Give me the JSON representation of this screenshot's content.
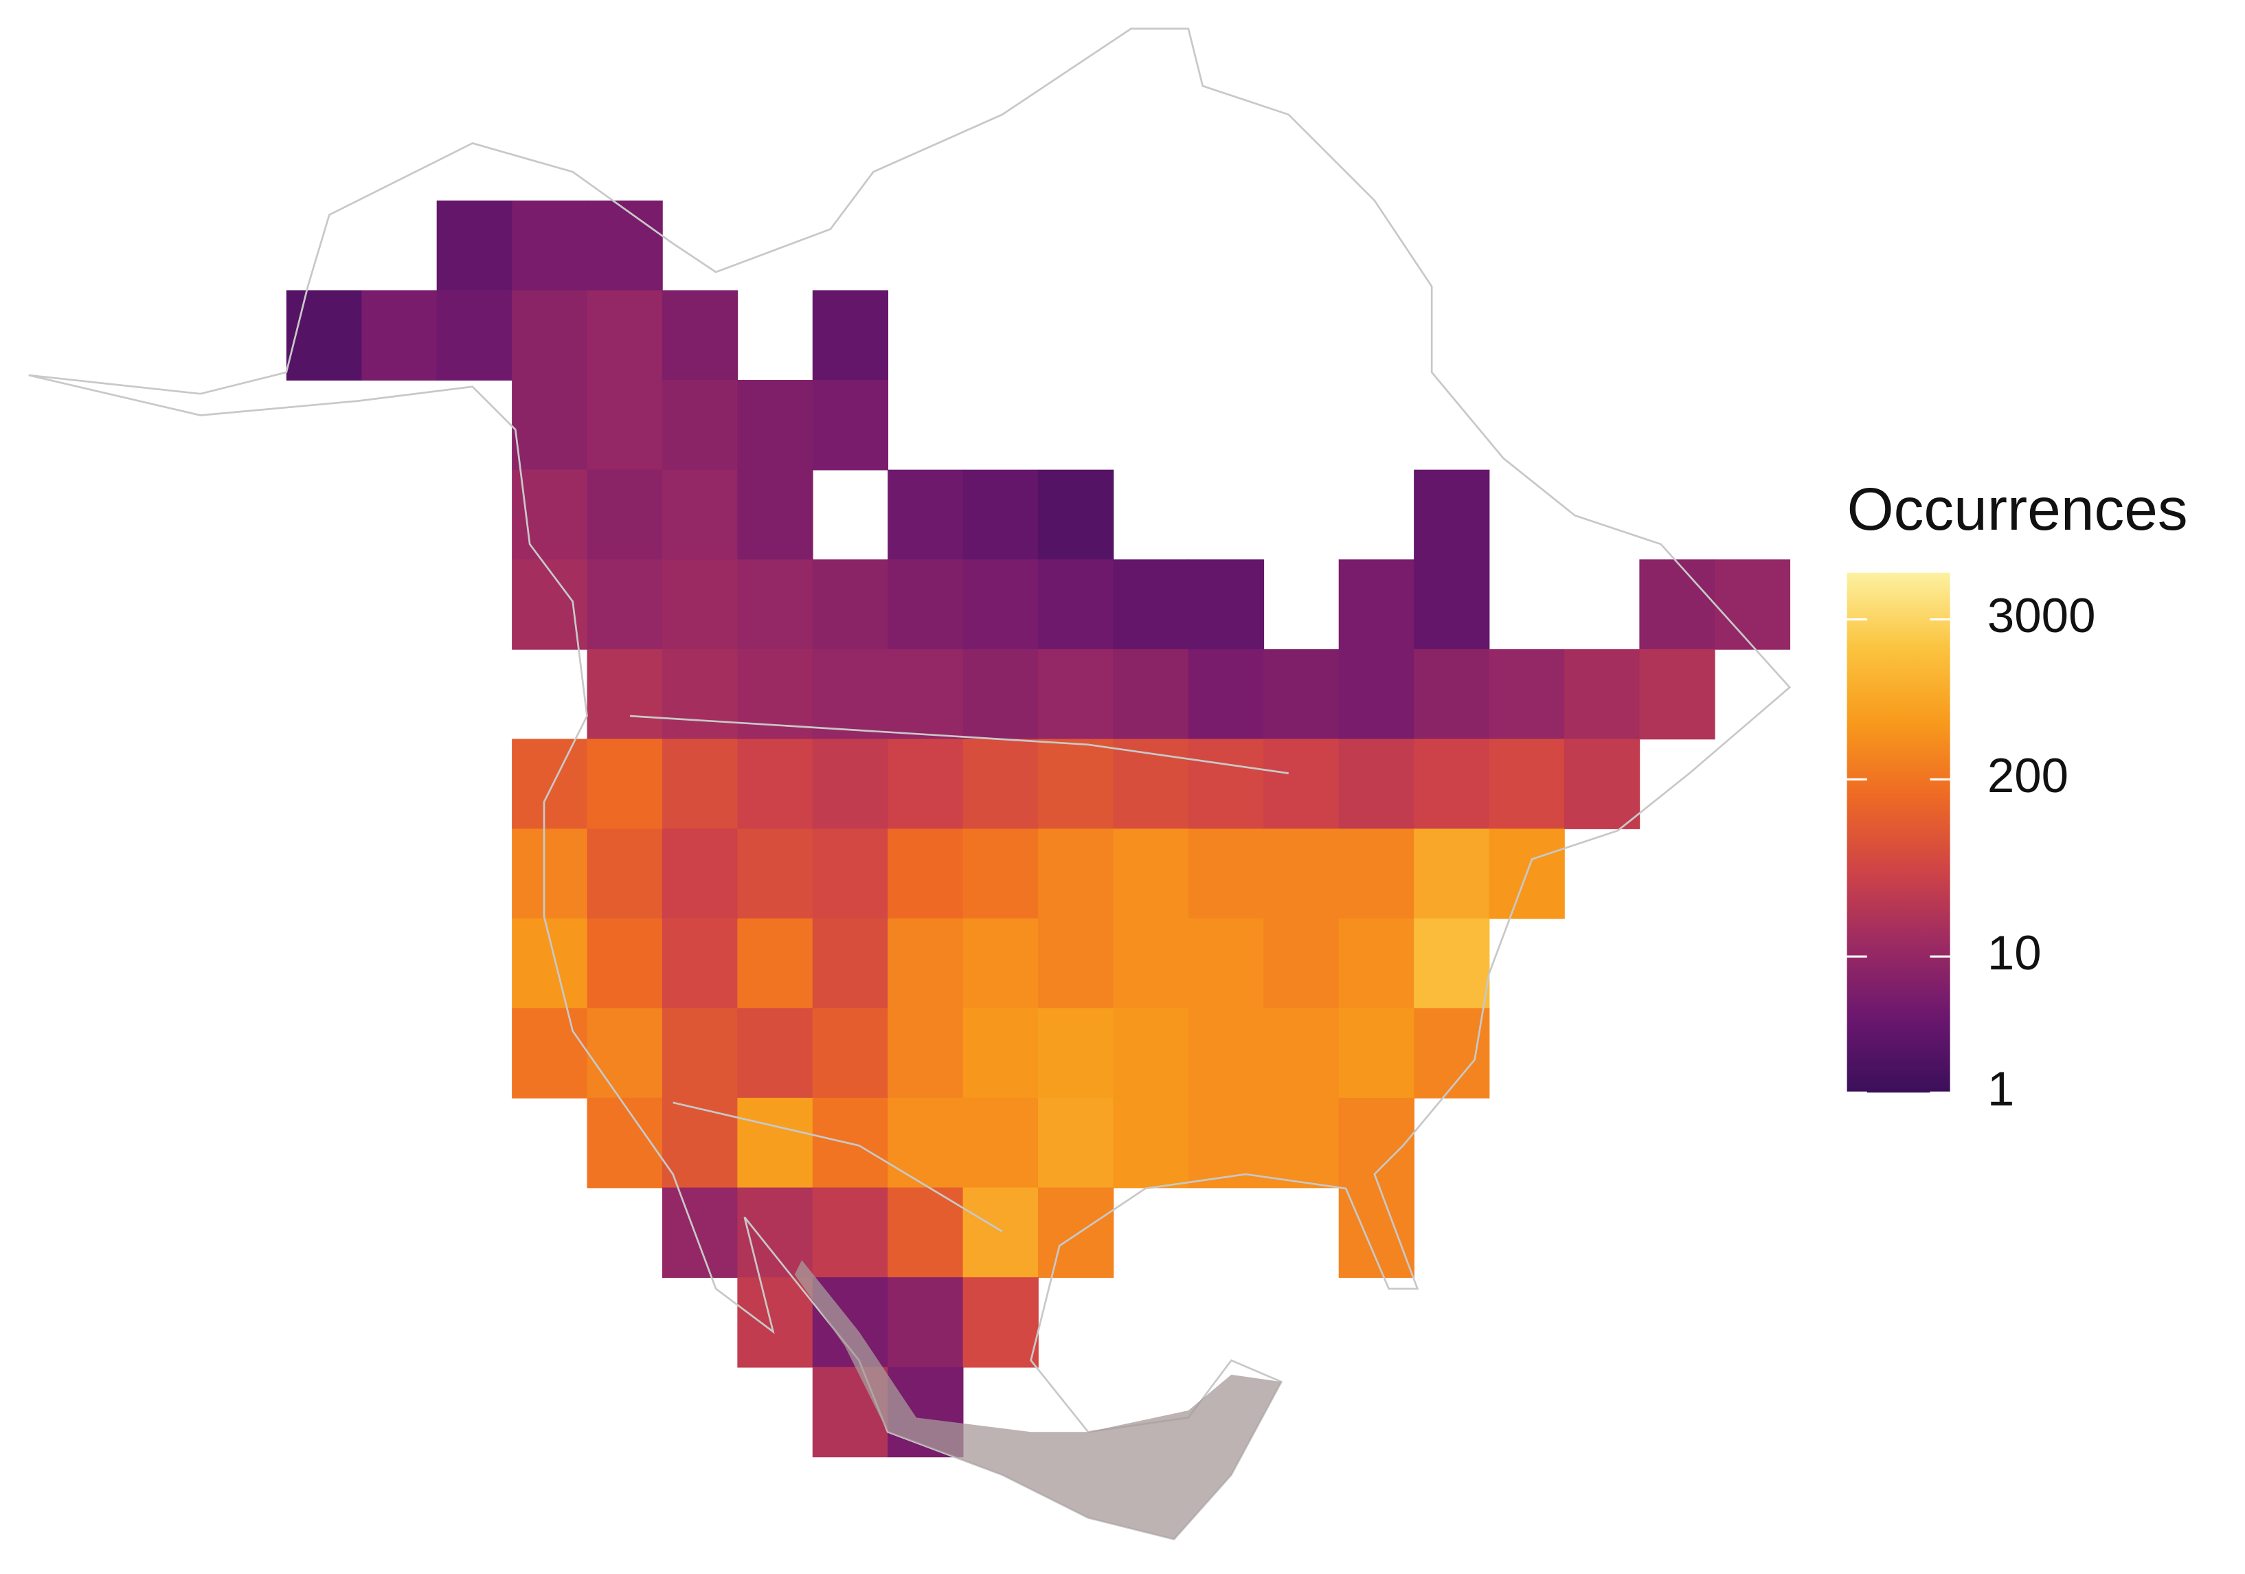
{
  "map": {
    "legend": {
      "title": "Occurrences",
      "scale": "log",
      "range": [
        1,
        6600
      ],
      "ticks": [
        1,
        10,
        200,
        3000
      ],
      "colors": [
        "#3b0f5a",
        "#6a176e",
        "#9c2a63",
        "#cf4446",
        "#ee6a24",
        "#f89a1c",
        "#fbc440",
        "#fcf1a0"
      ]
    },
    "grid": {
      "rows": [
        [
          null,
          null,
          3,
          5,
          5,
          null,
          null,
          null,
          null,
          null,
          null,
          null,
          null,
          null,
          null,
          null,
          null,
          null,
          null,
          null
        ],
        [
          2,
          5,
          4,
          8,
          10,
          6,
          null,
          3,
          null,
          null,
          null,
          null,
          null,
          null,
          null,
          null,
          null,
          null,
          null,
          null
        ],
        [
          null,
          null,
          null,
          8,
          10,
          8,
          6,
          5,
          null,
          null,
          null,
          null,
          null,
          null,
          null,
          null,
          null,
          null,
          null,
          null
        ],
        [
          null,
          null,
          null,
          12,
          8,
          10,
          6,
          null,
          4,
          3,
          2,
          null,
          null,
          null,
          null,
          3,
          null,
          null,
          null,
          null
        ],
        [
          null,
          null,
          null,
          15,
          10,
          12,
          10,
          8,
          6,
          5,
          4,
          3,
          3,
          null,
          5,
          3,
          null,
          null,
          8,
          10
        ],
        [
          null,
          null,
          null,
          null,
          20,
          15,
          12,
          10,
          10,
          8,
          10,
          8,
          5,
          6,
          5,
          8,
          10,
          15,
          20,
          null
        ],
        [
          null,
          null,
          null,
          100,
          150,
          60,
          40,
          30,
          40,
          60,
          80,
          60,
          50,
          40,
          30,
          40,
          50,
          30,
          null,
          null
        ],
        [
          null,
          null,
          null,
          300,
          100,
          40,
          60,
          50,
          150,
          200,
          300,
          400,
          300,
          300,
          300,
          800,
          500,
          null,
          null,
          null
        ],
        [
          null,
          null,
          null,
          500,
          150,
          50,
          200,
          60,
          300,
          400,
          300,
          400,
          400,
          300,
          400,
          1500,
          null,
          null,
          null,
          null
        ],
        [
          null,
          null,
          null,
          200,
          300,
          80,
          60,
          100,
          300,
          500,
          600,
          500,
          400,
          400,
          500,
          300,
          null,
          null,
          null,
          null
        ],
        [
          null,
          null,
          null,
          null,
          200,
          80,
          600,
          200,
          400,
          400,
          700,
          500,
          400,
          400,
          300,
          null,
          null,
          null,
          null,
          null
        ],
        [
          null,
          null,
          null,
          null,
          null,
          10,
          20,
          30,
          100,
          800,
          300,
          null,
          null,
          null,
          300,
          null,
          null,
          null,
          null,
          null
        ],
        [
          null,
          null,
          null,
          null,
          null,
          null,
          30,
          5,
          8,
          50,
          null,
          null,
          null,
          null,
          null,
          null,
          null,
          null,
          null,
          null
        ],
        [
          null,
          null,
          null,
          null,
          null,
          null,
          null,
          20,
          5,
          null,
          null,
          null,
          null,
          null,
          null,
          null,
          null,
          null,
          null,
          null
        ],
        [
          null,
          null,
          null,
          null,
          null,
          null,
          null,
          null,
          null,
          null,
          null,
          null,
          null,
          null,
          null,
          null,
          null,
          null,
          null,
          null
        ]
      ]
    }
  }
}
